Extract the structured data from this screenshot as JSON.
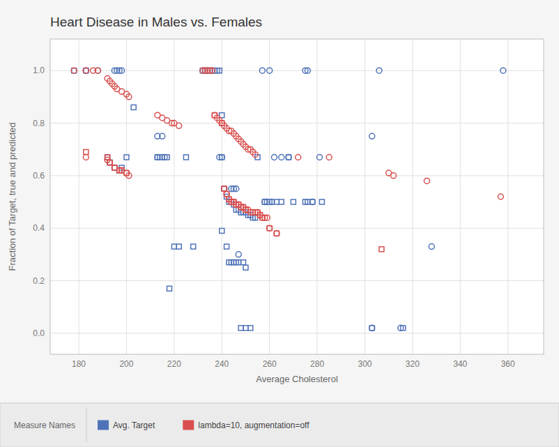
{
  "chart_data": {
    "type": "scatter",
    "title": "Heart Disease in Males vs. Females",
    "x_label": "Average Cholesterol",
    "y_label": "Fraction of Target, true and predicted",
    "legend_title": "Measure Names",
    "xlim": [
      168,
      375
    ],
    "ylim": [
      -0.08,
      1.12
    ],
    "xticks": [
      180,
      200,
      220,
      240,
      260,
      280,
      300,
      320,
      340,
      360
    ],
    "yticks": [
      {
        "value": 0.0,
        "label": "0.0"
      },
      0.2,
      0.4,
      0.6,
      0.8,
      {
        "value": 1.0,
        "label": "1.0"
      }
    ],
    "grid": true,
    "series": [
      {
        "name": "Avg. Target",
        "color": "#4f73b8",
        "marker": "square",
        "x": [
          178,
          183,
          192,
          193,
          195,
          197,
          198,
          200,
          203,
          213,
          214,
          215,
          217,
          218,
          220,
          222,
          225,
          228,
          232,
          233,
          234,
          235,
          236,
          237,
          238,
          239,
          240,
          240,
          241,
          242,
          243,
          244,
          245,
          246,
          247,
          248,
          249,
          250,
          251,
          252,
          253,
          254,
          240,
          242,
          243,
          244,
          245,
          246,
          247,
          249,
          250,
          248,
          250,
          252,
          255,
          258,
          260,
          263,
          265,
          268,
          270,
          275,
          276,
          278,
          282,
          303,
          316
        ],
        "values": [
          1.0,
          1.0,
          0.67,
          0.65,
          0.63,
          0.62,
          0.63,
          0.67,
          0.86,
          0.67,
          0.67,
          0.67,
          0.67,
          0.17,
          0.33,
          0.33,
          0.67,
          0.33,
          1.0,
          1.0,
          1.0,
          1.0,
          1.0,
          1.0,
          1.0,
          1.0,
          0.83,
          0.67,
          0.55,
          0.52,
          0.5,
          0.5,
          0.49,
          0.47,
          0.47,
          0.46,
          0.46,
          0.46,
          0.45,
          0.45,
          0.44,
          0.44,
          0.39,
          0.33,
          0.27,
          0.27,
          0.27,
          0.27,
          0.27,
          0.27,
          0.25,
          0.02,
          0.02,
          0.02,
          0.67,
          0.5,
          0.5,
          0.5,
          0.5,
          0.67,
          0.5,
          0.5,
          0.5,
          0.5,
          0.5,
          0.02,
          0.02
        ]
      },
      {
        "name": "Avg. Target",
        "color": "#4f73b8",
        "marker": "circle",
        "x": [
          183,
          188,
          195,
          196,
          197,
          198,
          232,
          233,
          234,
          236,
          257,
          260,
          275,
          276,
          306,
          358,
          213,
          215,
          303,
          213,
          216,
          239,
          240,
          262,
          265,
          268,
          281,
          241,
          244,
          245,
          246,
          258,
          259,
          261,
          278,
          247,
          328,
          303,
          315
        ],
        "values": [
          1.0,
          1.0,
          1.0,
          1.0,
          1.0,
          1.0,
          1.0,
          1.0,
          1.0,
          1.0,
          1.0,
          1.0,
          1.0,
          1.0,
          1.0,
          1.0,
          0.75,
          0.75,
          0.75,
          0.67,
          0.67,
          0.67,
          0.67,
          0.67,
          0.67,
          0.67,
          0.67,
          0.55,
          0.55,
          0.55,
          0.55,
          0.5,
          0.5,
          0.5,
          0.5,
          0.3,
          0.33,
          0.02,
          0.02
        ]
      },
      {
        "name": "lambda=10, augmentation=off",
        "color": "#d94f4f",
        "marker": "circle",
        "x": [
          178,
          183,
          186,
          188,
          192,
          193,
          194,
          195,
          196,
          198,
          200,
          201,
          213,
          215,
          217,
          219,
          220,
          222,
          232,
          233,
          234,
          235,
          236,
          237,
          238,
          239,
          240,
          241,
          242,
          243,
          244,
          245,
          246,
          247,
          248,
          249,
          250,
          251,
          252,
          253,
          254,
          183,
          192,
          193,
          195,
          197,
          198,
          200,
          201,
          241,
          242,
          243,
          244,
          245,
          246,
          247,
          248,
          249,
          250,
          251,
          252,
          253,
          254,
          255,
          256,
          257,
          258,
          259,
          260,
          263,
          272,
          285,
          310,
          312,
          326,
          357
        ],
        "values": [
          1.0,
          1.0,
          1.0,
          1.0,
          0.97,
          0.96,
          0.95,
          0.94,
          0.93,
          0.92,
          0.91,
          0.9,
          0.83,
          0.82,
          0.81,
          0.8,
          0.8,
          0.79,
          1.0,
          1.0,
          1.0,
          1.0,
          1.0,
          0.83,
          0.82,
          0.81,
          0.8,
          0.79,
          0.78,
          0.77,
          0.77,
          0.76,
          0.75,
          0.74,
          0.73,
          0.72,
          0.71,
          0.7,
          0.7,
          0.69,
          0.68,
          0.67,
          0.66,
          0.65,
          0.63,
          0.62,
          0.62,
          0.61,
          0.6,
          0.55,
          0.53,
          0.51,
          0.5,
          0.5,
          0.49,
          0.49,
          0.48,
          0.48,
          0.47,
          0.47,
          0.46,
          0.46,
          0.46,
          0.46,
          0.45,
          0.44,
          0.44,
          0.44,
          0.4,
          0.38,
          0.67,
          0.67,
          0.61,
          0.6,
          0.58,
          0.52
        ]
      },
      {
        "name": "lambda=10, augmentation=off",
        "color": "#d94f4f",
        "marker": "square",
        "x": [
          183,
          192,
          193,
          195,
          197,
          198,
          200,
          237,
          240,
          241,
          242,
          243,
          244,
          245,
          246,
          247,
          248,
          249,
          250,
          255,
          256,
          257,
          260,
          263,
          307
        ],
        "values": [
          0.69,
          0.67,
          0.65,
          0.63,
          0.62,
          0.62,
          0.61,
          0.83,
          0.8,
          0.55,
          0.53,
          0.51,
          0.5,
          0.5,
          0.49,
          0.49,
          0.48,
          0.48,
          0.47,
          0.46,
          0.45,
          0.44,
          0.4,
          0.38,
          0.32
        ]
      }
    ]
  }
}
